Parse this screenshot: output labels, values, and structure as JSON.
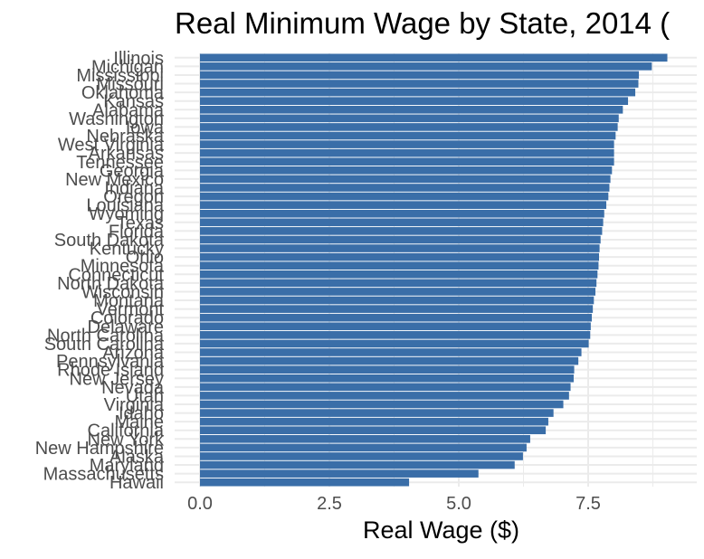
{
  "chart_data": {
    "type": "bar",
    "orientation": "horizontal",
    "title": "Real Minimum Wage by State, 2014 (",
    "xlabel": "Real Wage ($)",
    "ylabel": "",
    "xlim": [
      0,
      9.5
    ],
    "xticks": [
      "0.0",
      "2.5",
      "5.0",
      "7.5"
    ],
    "grid": true,
    "bar_color": "#3A6EA8",
    "categories": [
      "Illinois",
      "Michigan",
      "Mississippi",
      "Missouri",
      "Oklahoma",
      "Kansas",
      "Alabama",
      "Washington",
      "Iowa",
      "Nebraska",
      "West Virginia",
      "Arkansas",
      "Tennessee",
      "Georgia",
      "New Mexico",
      "Indiana",
      "Oregon",
      "Louisiana",
      "Wyoming",
      "Texas",
      "Florida",
      "South Dakota",
      "Kentucky",
      "Ohio",
      "Minnesota",
      "Connecticut",
      "North Dakota",
      "Wisconsin",
      "Montana",
      "Vermont",
      "Colorado",
      "Delaware",
      "North Carolina",
      "South Carolina",
      "Arizona",
      "Pennsylvania",
      "Rhode Island",
      "New Jersey",
      "Nevada",
      "Utah",
      "Virginia",
      "Idaho",
      "Maine",
      "California",
      "New York",
      "New Hampshire",
      "Alaska",
      "Maryland",
      "Massachusetts",
      "Hawaii"
    ],
    "values": [
      9.03,
      8.73,
      8.48,
      8.47,
      8.41,
      8.27,
      8.17,
      8.09,
      8.07,
      8.03,
      8.0,
      8.0,
      8.0,
      7.96,
      7.93,
      7.91,
      7.89,
      7.85,
      7.81,
      7.79,
      7.77,
      7.74,
      7.72,
      7.71,
      7.7,
      7.68,
      7.66,
      7.64,
      7.61,
      7.59,
      7.57,
      7.55,
      7.54,
      7.51,
      7.37,
      7.31,
      7.23,
      7.22,
      7.16,
      7.13,
      7.02,
      6.83,
      6.73,
      6.68,
      6.38,
      6.31,
      6.24,
      6.08,
      5.38,
      4.04
    ]
  }
}
